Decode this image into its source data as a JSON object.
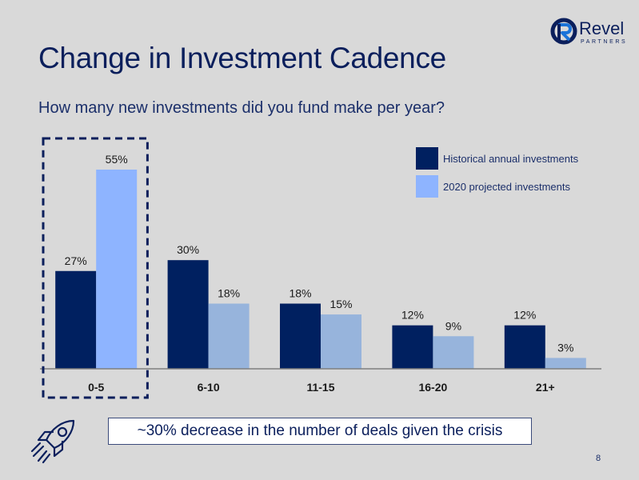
{
  "page": {
    "title": "Change in Investment Cadence",
    "subtitle": "How many new investments did you fund make per year?",
    "callout": "~30% decrease in the number of deals given the crisis",
    "page_number": "8",
    "logo": {
      "name": "Revel",
      "sub": "PARTNERS",
      "icon": "revel-r-logo-icon"
    },
    "decor_icon": "rocket-icon"
  },
  "colors": {
    "historical": "#002060",
    "projected_highlight": "#8eb4ff",
    "projected": "#97b4dc",
    "highlight_border": "#0b1f5c"
  },
  "chart_data": {
    "type": "bar",
    "categories": [
      "0-5",
      "6-10",
      "11-15",
      "16-20",
      "21+"
    ],
    "series": [
      {
        "name": "Historical annual investments",
        "values": [
          27,
          30,
          18,
          12,
          12
        ],
        "labels": [
          "27%",
          "30%",
          "18%",
          "12%",
          "12%"
        ]
      },
      {
        "name": "2020 projected investments",
        "values": [
          55,
          18,
          15,
          9,
          3
        ],
        "labels": [
          "55%",
          "18%",
          "15%",
          "9%",
          "3%"
        ]
      }
    ],
    "ylim": [
      0,
      55
    ],
    "unit": "%",
    "grid": false,
    "legend": "top-right",
    "highlighted_category": "0-5"
  }
}
